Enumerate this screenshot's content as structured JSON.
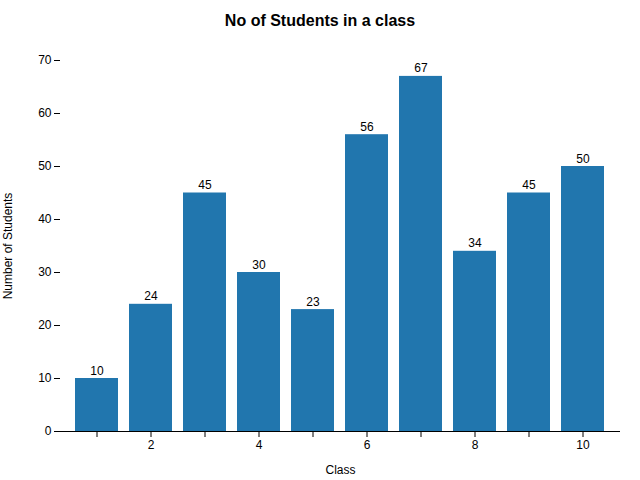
{
  "chart_data": {
    "type": "bar",
    "title": "No of Students in a class",
    "xlabel": "Class",
    "ylabel": "Number of Students",
    "categories": [
      null,
      "2",
      null,
      "4",
      null,
      "6",
      null,
      "8",
      null,
      "10"
    ],
    "values": [
      10,
      24,
      45,
      30,
      23,
      56,
      67,
      34,
      45,
      50
    ],
    "color": "#2176ae",
    "ylim": [
      0,
      70
    ],
    "yticks": [
      0,
      10,
      20,
      30,
      40,
      50,
      60,
      70
    ],
    "data_labels": true
  }
}
